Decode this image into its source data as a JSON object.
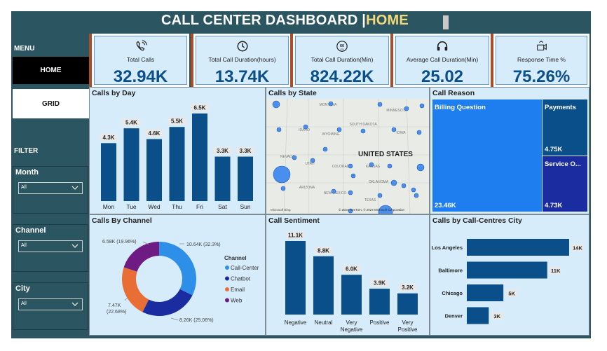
{
  "header": {
    "title_main": "CALL CENTER DASHBOARD |",
    "title_page": "HOME"
  },
  "sidebar": {
    "menu_label": "MENU",
    "home_label": "HOME",
    "grid_label": "GRID",
    "filter_label": "FILTER",
    "slicers": [
      {
        "label": "Month",
        "value": "All"
      },
      {
        "label": "Channel",
        "value": "All"
      },
      {
        "label": "City",
        "value": "All"
      }
    ]
  },
  "kpis": [
    {
      "label": "Total Calls",
      "value": "32.94K",
      "icon": "phone-icon"
    },
    {
      "label": "Total Call Duration(hours)",
      "value": "13.74K",
      "icon": "clock-icon"
    },
    {
      "label": "Total Call Duration(Min)",
      "value": "824.22K",
      "icon": "timer-60-icon"
    },
    {
      "label": "Average Call Duration(Min)",
      "value": "25.02",
      "icon": "headset-icon"
    },
    {
      "label": "Response Time %",
      "value": "75.26%",
      "icon": "response-icon"
    }
  ],
  "map": {
    "title": "Calls by State",
    "country_label": "UNITED STATES",
    "state_labels": [
      "MONTANA",
      "MINNESOTA",
      "IDAHO",
      "WYOMING",
      "SOUTH DAKOTA",
      "IOWA",
      "NEVADA",
      "UTAH",
      "COLORADO",
      "KANSAS",
      "ARIZONA",
      "NEW MEXICO",
      "OKLAHOMA",
      "TEXAS"
    ],
    "attribution": "© 2024 TomTom, © 2024 Microsoft Corporation",
    "logo": "Microsoft Bing"
  },
  "treemap": {
    "title": "Call Reason",
    "items": [
      {
        "label": "Billing Question",
        "value": "23.46K"
      },
      {
        "label": "Payments",
        "value": "4.75K"
      },
      {
        "label": "Service O...",
        "value": "4.73K"
      }
    ]
  },
  "chart_data": [
    {
      "type": "bar",
      "title": "Calls by Day",
      "categories": [
        "Mon",
        "Tue",
        "Wed",
        "Thu",
        "Fri",
        "Sat",
        "Sun"
      ],
      "values": [
        4.3,
        5.4,
        4.6,
        5.5,
        6.5,
        3.3,
        3.3
      ],
      "labels": [
        "4.3K",
        "5.4K",
        "4.6K",
        "5.5K",
        "6.5K",
        "3.3K",
        "3.3K"
      ],
      "color": "#0b4f8a"
    },
    {
      "type": "pie",
      "title": "Calls By Channel",
      "legend_title": "Channel",
      "categories": [
        "Call-Center",
        "Chatbot",
        "Email",
        "Web"
      ],
      "values": [
        10.64,
        8.26,
        7.47,
        6.58
      ],
      "labels": [
        "10.64K (32.3%)",
        "8.26K (25.06%)",
        "7.47K (22.68%)",
        "6.58K (19.96%)"
      ],
      "colors": [
        "#2e8fe8",
        "#1a2ca0",
        "#e96e35",
        "#6e1c84"
      ]
    },
    {
      "type": "bar",
      "title": "Call Sentiment",
      "categories": [
        "Negative",
        "Neutral",
        "Very Negative",
        "Positive",
        "Very Positive"
      ],
      "values": [
        11.1,
        8.8,
        6.0,
        3.9,
        3.2
      ],
      "labels": [
        "11.1K",
        "8.8K",
        "6.0K",
        "3.9K",
        "3.2K"
      ],
      "color": "#0b4f8a"
    },
    {
      "type": "bar",
      "orientation": "horizontal",
      "title": "Calls by Call-Centres City",
      "categories": [
        "Los Angeles",
        "Baltimore",
        "Chicago",
        "Denver"
      ],
      "values": [
        14,
        11,
        5,
        3
      ],
      "labels": [
        "14K",
        "11K",
        "5K",
        "3K"
      ],
      "color": "#0b4f8a"
    }
  ],
  "colors": {
    "frame": "#2b5560",
    "card_bg": "#d6ecfb",
    "accent": "#a94d2a",
    "bar": "#0b4f8a",
    "title_highlight": "#f4d97a"
  }
}
